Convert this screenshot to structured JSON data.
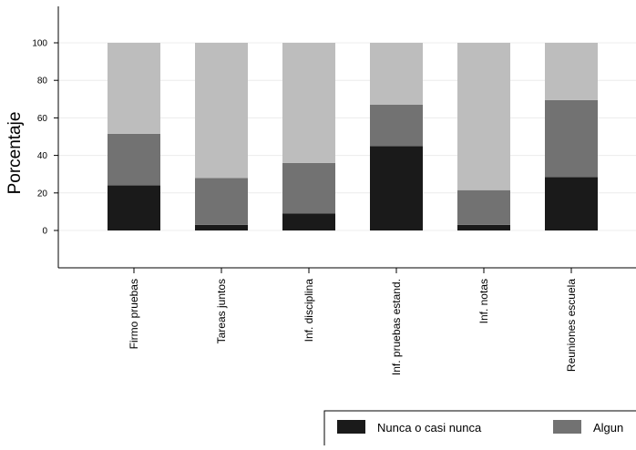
{
  "chart_data": {
    "type": "bar",
    "stacked": true,
    "ylabel": "Porcentaje",
    "xlabel": "",
    "ylim": [
      -20,
      120
    ],
    "yticks": [
      0,
      20,
      40,
      60,
      80,
      100
    ],
    "grid": true,
    "legend_position": "bottom",
    "categories": [
      "Firmo pruebas",
      "Tareas juntos",
      "Inf. disciplina",
      "Inf. pruebas estand.",
      "Inf. notas",
      "Reuniones escuela"
    ],
    "series": [
      {
        "name": "Nunca o casi nunca",
        "color": "#1a1a1a",
        "values": [
          24,
          3,
          9,
          45,
          3,
          28.5
        ]
      },
      {
        "name": "Algun",
        "color": "#727272",
        "values": [
          27.5,
          25,
          27,
          22,
          18.5,
          41
        ]
      },
      {
        "name": "",
        "color": "#bdbdbd",
        "values": [
          48.5,
          72,
          64,
          33,
          78.5,
          30.5
        ]
      }
    ]
  }
}
